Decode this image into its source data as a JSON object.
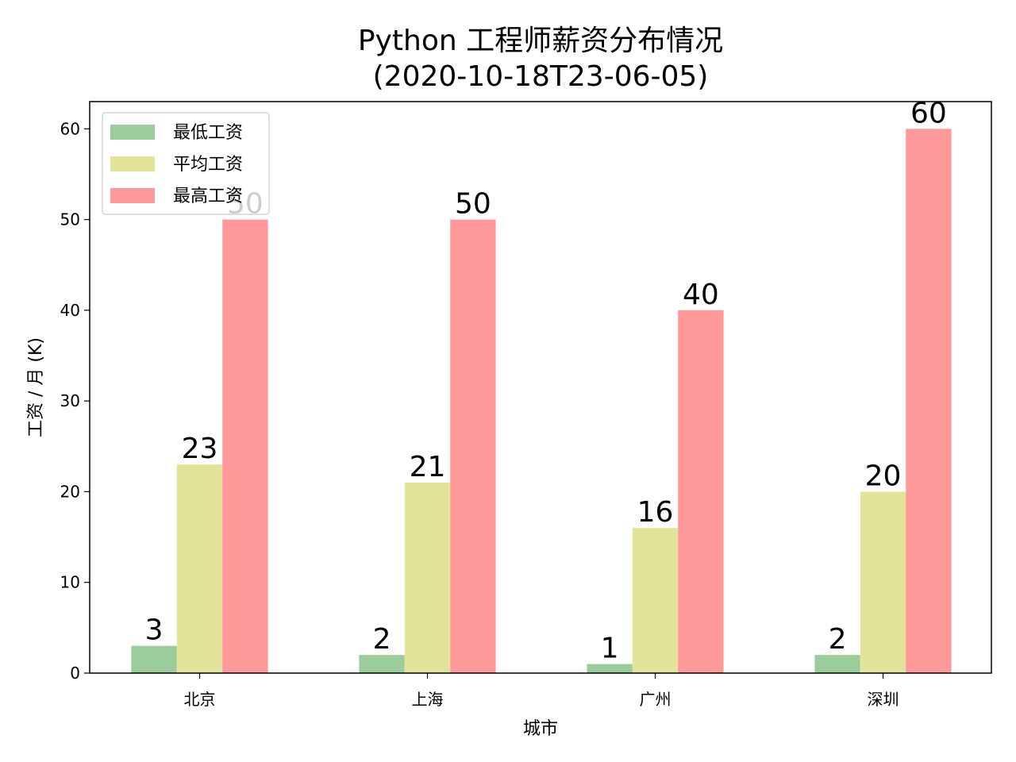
{
  "chart_data": {
    "type": "bar",
    "title": "Python 工程师薪资分布情况",
    "subtitle": "(2020-10-18T23-06-05)",
    "xlabel": "城市",
    "ylabel": "工资 / 月 (K)",
    "categories": [
      "北京",
      "上海",
      "广州",
      "深圳"
    ],
    "series": [
      {
        "name": "最低工资",
        "color": "#9acd9a",
        "values": [
          3,
          2,
          1,
          2
        ]
      },
      {
        "name": "平均工资",
        "color": "#e3e39a",
        "values": [
          23,
          21,
          16,
          20
        ]
      },
      {
        "name": "最高工资",
        "color": "#ff9999",
        "values": [
          50,
          50,
          40,
          60
        ]
      }
    ],
    "ylim": [
      0,
      63
    ],
    "yticks": [
      0,
      10,
      20,
      30,
      40,
      50,
      60
    ],
    "grid": false,
    "legend_position": "top-left"
  }
}
